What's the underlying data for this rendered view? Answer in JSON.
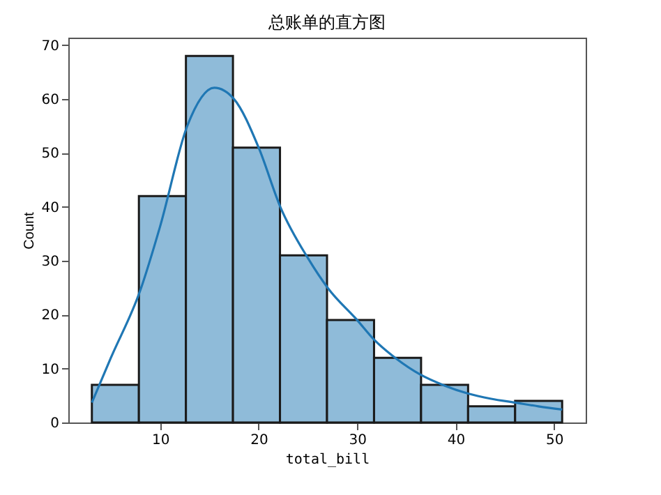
{
  "chart_data": {
    "type": "histogram",
    "title": "总账单的直方图",
    "xlabel": "total_bill",
    "ylabel": "Count",
    "bins": [
      3.07,
      7.844,
      12.618,
      17.392,
      22.166,
      26.94,
      31.714,
      36.488,
      41.262,
      46.036,
      50.81
    ],
    "values": [
      7,
      42,
      68,
      51,
      31,
      19,
      12,
      7,
      3,
      4
    ],
    "color": "#8fbbd9",
    "series": [
      {
        "type": "line",
        "color": "#1f77b4",
        "x": [
          3.07,
          5,
          8,
          10,
          12.75,
          15.5,
          17.5,
          20,
          22.2,
          25,
          27,
          30,
          31.7,
          34,
          36.4,
          38.8,
          41.2,
          43.6,
          46,
          48.4,
          50.81
        ],
        "values": [
          3.7,
          12,
          24.6,
          36.4,
          55,
          62.1,
          60,
          51,
          40,
          30.5,
          25,
          19,
          15.4,
          11.8,
          8.9,
          6.9,
          5.4,
          4.4,
          3.7,
          3,
          2.4
        ]
      }
    ],
    "xlim": [
      0.68,
      53.2
    ],
    "xticks": [
      10,
      20,
      30,
      40,
      50
    ],
    "ylim": [
      0,
      71.4
    ],
    "yticks": [
      0,
      10,
      20,
      30,
      40,
      50,
      60,
      70
    ],
    "grid": false
  }
}
